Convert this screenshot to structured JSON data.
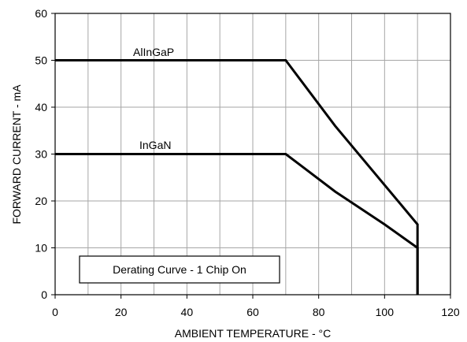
{
  "chart_data": {
    "type": "line",
    "xlabel": "AMBIENT TEMPERATURE - °C",
    "ylabel": "FORWARD CURRENT - mA",
    "xlim": [
      0,
      120
    ],
    "ylim": [
      0,
      60
    ],
    "x_ticks": [
      0,
      20,
      40,
      60,
      80,
      100,
      120
    ],
    "y_ticks": [
      0,
      10,
      20,
      30,
      40,
      50,
      60
    ],
    "grid": true,
    "series": [
      {
        "name": "AlInGaP",
        "x": [
          0,
          70,
          85,
          110,
          110
        ],
        "y": [
          50,
          50,
          36,
          15,
          0
        ]
      },
      {
        "name": "InGaN",
        "x": [
          0,
          70,
          85,
          100,
          110,
          110
        ],
        "y": [
          30,
          30,
          22,
          15,
          10,
          0
        ]
      }
    ],
    "annotation": "Derating Curve - 1 Chip On"
  }
}
